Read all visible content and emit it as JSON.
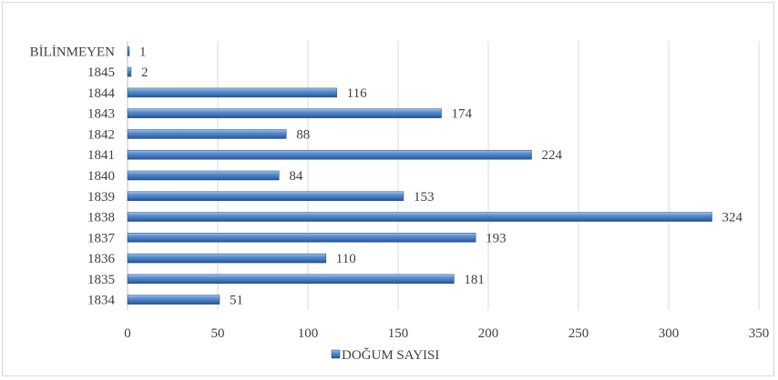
{
  "chart_data": {
    "type": "bar",
    "orientation": "horizontal",
    "categories": [
      "BİLİNMEYEN",
      "1845",
      "1844",
      "1843",
      "1842",
      "1841",
      "1840",
      "1839",
      "1838",
      "1837",
      "1836",
      "1835",
      "1834"
    ],
    "series": [
      {
        "name": "DOĞUM SAYISI",
        "values": [
          1,
          2,
          116,
          174,
          88,
          224,
          84,
          153,
          324,
          193,
          110,
          181,
          51
        ],
        "color": "#4a7ebf"
      }
    ],
    "xlim": [
      0,
      350
    ],
    "x_ticks": [
      0,
      50,
      100,
      150,
      200,
      250,
      300,
      350
    ],
    "grid": true,
    "legend_position": "bottom"
  }
}
